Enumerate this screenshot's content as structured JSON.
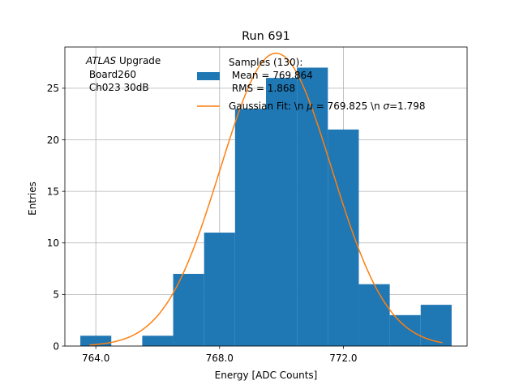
{
  "chart_data": {
    "type": "bar",
    "title": "Run 691",
    "xlabel": "Energy [ADC Counts]",
    "ylabel": "Entries",
    "xlim": [
      763.0,
      776.0
    ],
    "ylim": [
      0,
      29.0
    ],
    "xticks": [
      764.0,
      768.0,
      772.0
    ],
    "xtick_labels": [
      "764.0",
      "768.0",
      "772.0"
    ],
    "yticks": [
      0,
      5,
      10,
      15,
      20,
      25
    ],
    "grid": true,
    "bar_color": "#1f77b4",
    "fit_color": "#ff7f0e",
    "histogram": {
      "name": "Samples (130):\n Mean = 769.864\n RMS = 1.868",
      "bins": [
        {
          "x0": 763.5,
          "x1": 764.5,
          "count": 1
        },
        {
          "x0": 764.5,
          "x1": 765.5,
          "count": 0
        },
        {
          "x0": 765.5,
          "x1": 766.5,
          "count": 1
        },
        {
          "x0": 766.5,
          "x1": 767.5,
          "count": 7
        },
        {
          "x0": 767.5,
          "x1": 768.5,
          "count": 11
        },
        {
          "x0": 768.5,
          "x1": 769.5,
          "count": 23
        },
        {
          "x0": 769.5,
          "x1": 770.5,
          "count": 26
        },
        {
          "x0": 770.5,
          "x1": 771.5,
          "count": 27
        },
        {
          "x0": 771.5,
          "x1": 772.5,
          "count": 21
        },
        {
          "x0": 772.5,
          "x1": 773.5,
          "count": 6
        },
        {
          "x0": 773.5,
          "x1": 774.5,
          "count": 3
        },
        {
          "x0": 774.5,
          "x1": 775.5,
          "count": 4
        }
      ]
    },
    "fit": {
      "name": "Gaussian Fit: \\n $\\mu$ = 769.825 \\n $\\sigma$=1.798",
      "label_prefix": "Gaussian Fit: \\n ",
      "mu_symbol": "μ",
      "mu_text": " = 769.825 \\n ",
      "sigma_symbol": "σ",
      "sigma_text": "=1.798",
      "mu": 769.825,
      "sigma": 1.798,
      "amplitude": 28.4,
      "x_start": 763.8,
      "x_end": 775.2
    },
    "legend": {
      "location": "upper right",
      "hist_lines": [
        "Samples (130):",
        " Mean = 769.864",
        " RMS = 1.868"
      ]
    },
    "annotation": {
      "italic": "ATLAS",
      "rest": " Upgrade",
      "lines": [
        " Board260",
        " Ch023 30dB"
      ]
    }
  }
}
